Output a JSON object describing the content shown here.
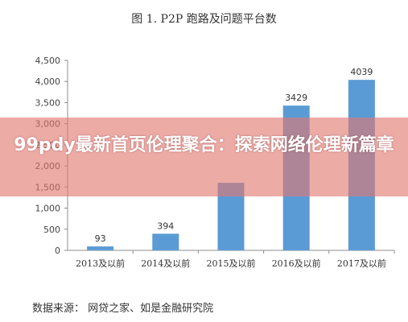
{
  "banner": {
    "text": "99pdy最新首页伦理聚合：探索网络伦理新篇章"
  },
  "source_note": "数据来源： 网贷之家、如是金融研究院",
  "chart_data": {
    "type": "bar",
    "title": "图 1. P2P 跑路及问题平台数",
    "categories": [
      "2013及以前",
      "2014及以前",
      "2015及以前",
      "2016及以前",
      "2017及以前"
    ],
    "values": [
      93,
      394,
      1600,
      3429,
      4039
    ],
    "value_labels": [
      "93",
      "394",
      "",
      "3429",
      "4039"
    ],
    "ylim": [
      0,
      4500
    ],
    "yticks": [
      0,
      500,
      1000,
      1500,
      2000,
      2500,
      3000,
      3500,
      4000,
      4500
    ],
    "ytick_labels": [
      "0",
      "500",
      "1,000",
      "1,500",
      "2,000",
      "2,500",
      "3,000",
      "3,500",
      "4,000",
      "4,500"
    ],
    "bar_color": "#5b9bd5",
    "grid": false
  }
}
